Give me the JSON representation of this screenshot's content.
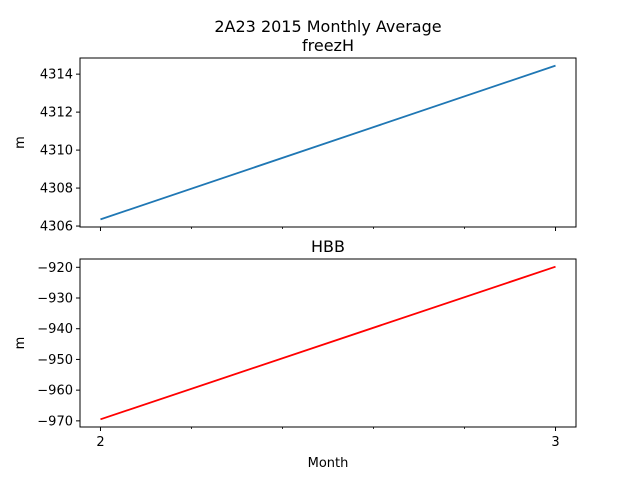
{
  "figure": {
    "suptitle": "2A23 2015 Monthly Average",
    "xlabel": "Month"
  },
  "chart_data": [
    {
      "type": "line",
      "title": "freezH",
      "xlabel": "",
      "ylabel": "m",
      "x": [
        2,
        3
      ],
      "series": [
        {
          "values": [
            4306.35,
            4314.45
          ],
          "color": "#1f77b4"
        }
      ],
      "xlim": [
        1.955,
        3.045
      ],
      "ylim": [
        4305.95,
        4314.85
      ],
      "xticks": [
        2,
        3
      ],
      "xtick_labels": [
        "",
        ""
      ],
      "yticks": [
        4306,
        4308,
        4310,
        4312,
        4314
      ],
      "grid": false
    },
    {
      "type": "line",
      "title": "HBB",
      "xlabel": "Month",
      "ylabel": "m",
      "x": [
        2,
        3
      ],
      "series": [
        {
          "values": [
            -969.5,
            -919.8
          ],
          "color": "#ff0000"
        }
      ],
      "xlim": [
        1.955,
        3.045
      ],
      "ylim": [
        -972.0,
        -917.3
      ],
      "xticks": [
        2,
        3
      ],
      "xtick_labels": [
        "2",
        "3"
      ],
      "yticks": [
        -970,
        -960,
        -950,
        -940,
        -930,
        -920
      ],
      "grid": false
    }
  ]
}
